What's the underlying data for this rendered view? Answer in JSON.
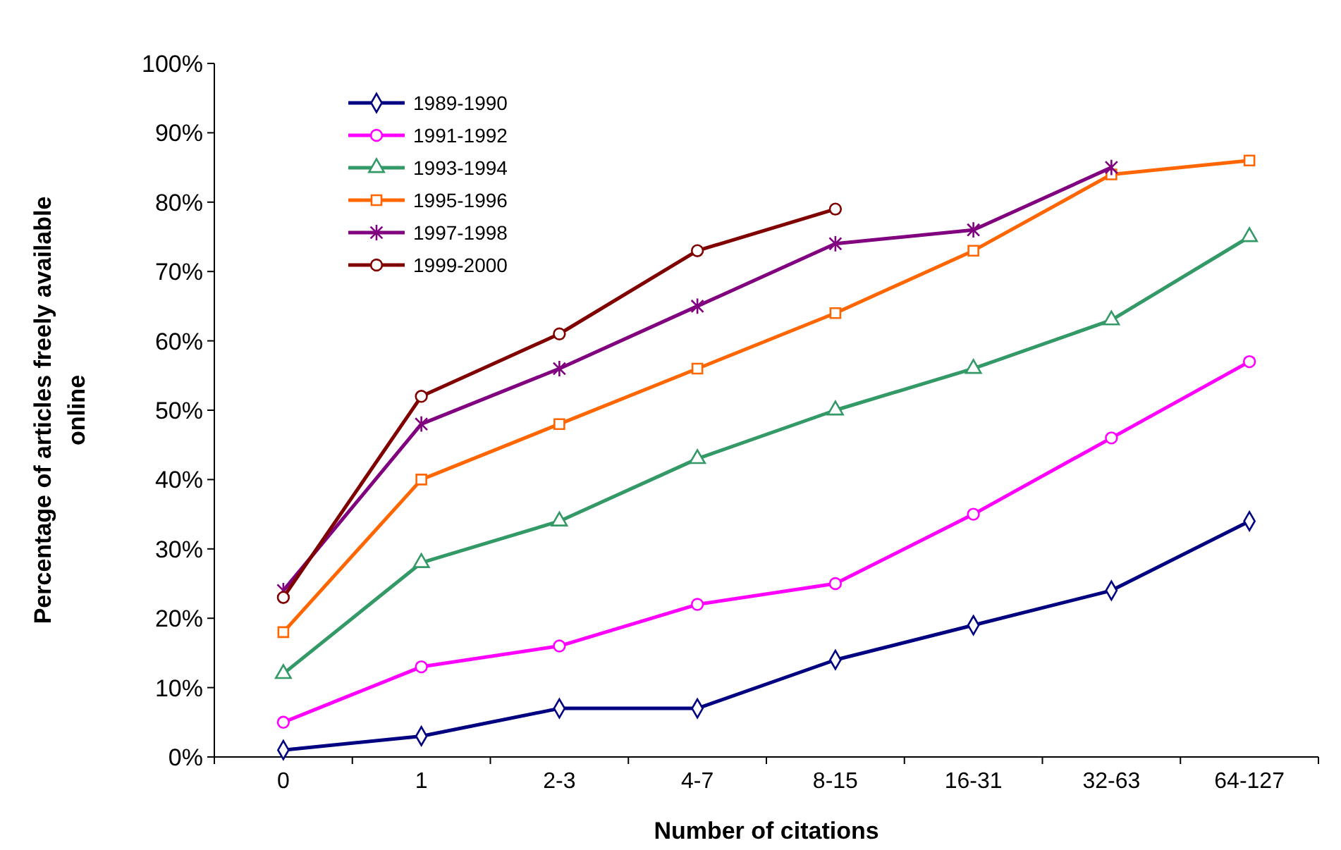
{
  "chart_data": {
    "type": "line",
    "xlabel": "Number of citations",
    "ylabel": "Percentage of articles freely available online",
    "categories": [
      "0",
      "1",
      "2-3",
      "4-7",
      "8-15",
      "16-31",
      "32-63",
      "64-127"
    ],
    "ylim": [
      0,
      100
    ],
    "yticks": [
      {
        "value": 0,
        "label": "0%"
      },
      {
        "value": 10,
        "label": "10%"
      },
      {
        "value": 20,
        "label": "20%"
      },
      {
        "value": 30,
        "label": "30%"
      },
      {
        "value": 40,
        "label": "40%"
      },
      {
        "value": 50,
        "label": "50%"
      },
      {
        "value": 60,
        "label": "60%"
      },
      {
        "value": 70,
        "label": "70%"
      },
      {
        "value": 80,
        "label": "80%"
      },
      {
        "value": 90,
        "label": "90%"
      },
      {
        "value": 100,
        "label": "100%"
      }
    ],
    "grid": false,
    "legend": "top left",
    "line_style": "solid",
    "series": [
      {
        "name": "1989-1990",
        "color": "#000080",
        "marker": "diamond",
        "values": [
          1,
          3,
          7,
          7,
          14,
          19,
          24,
          34
        ]
      },
      {
        "name": "1991-1992",
        "color": "#ff00ff",
        "marker": "circle",
        "values": [
          5,
          13,
          16,
          22,
          25,
          35,
          46,
          57
        ]
      },
      {
        "name": "1993-1994",
        "color": "#339966",
        "marker": "triangle",
        "values": [
          12,
          28,
          34,
          43,
          50,
          56,
          63,
          75
        ]
      },
      {
        "name": "1995-1996",
        "color": "#ff6600",
        "marker": "square",
        "values": [
          18,
          40,
          48,
          56,
          64,
          73,
          84,
          86
        ]
      },
      {
        "name": "1997-1998",
        "color": "#800080",
        "marker": "cross",
        "values": [
          24,
          48,
          56,
          65,
          74,
          76,
          85,
          null
        ]
      },
      {
        "name": "1999-2000",
        "color": "#800000",
        "marker": "circle",
        "values": [
          23,
          52,
          61,
          73,
          79,
          null,
          null,
          null
        ]
      }
    ]
  }
}
